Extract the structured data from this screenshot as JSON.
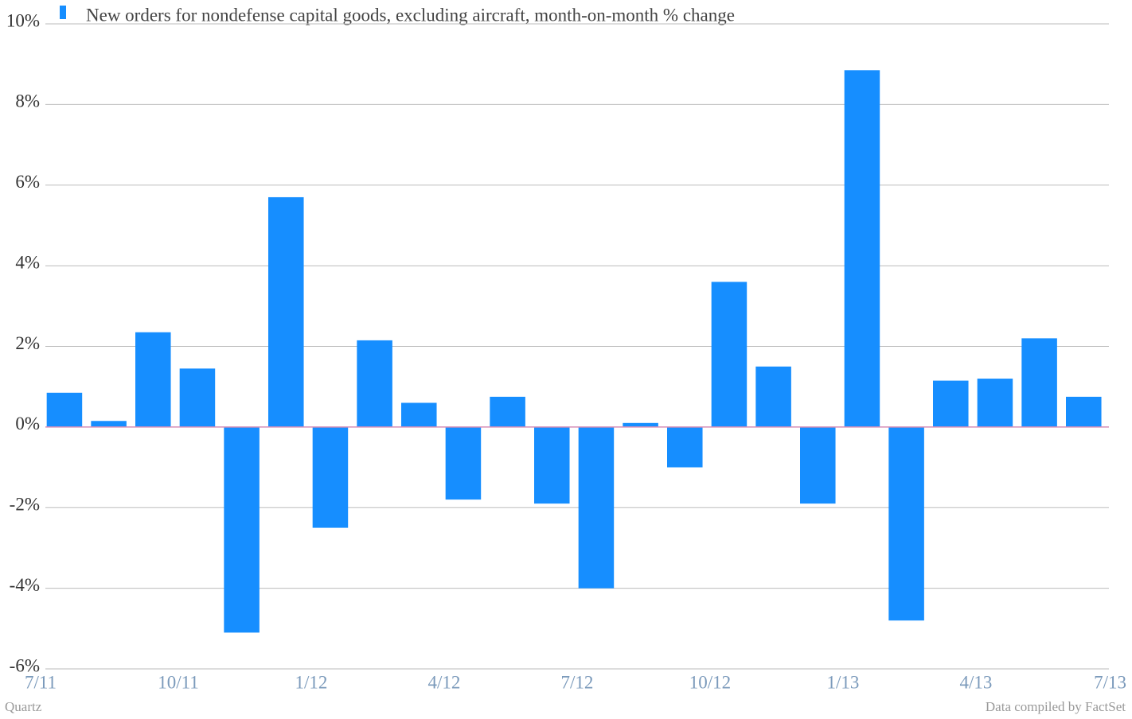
{
  "chart_data": {
    "type": "bar",
    "legend": "New orders for nondefense capital goods, excluding aircraft, month-on-month % change",
    "values": [
      0.85,
      0.15,
      2.35,
      1.45,
      -5.1,
      5.7,
      -2.5,
      2.15,
      0.6,
      -1.8,
      0.75,
      -1.9,
      -4.0,
      0.1,
      -1.0,
      3.6,
      1.5,
      -1.9,
      8.85,
      -4.8,
      1.15,
      1.2,
      2.2,
      0.75
    ],
    "color": "#168eff",
    "xlim": [
      0,
      24
    ],
    "xticks": [
      {
        "value": 0,
        "label": "7/11"
      },
      {
        "value": 3,
        "label": "10/11"
      },
      {
        "value": 6,
        "label": "1/12"
      },
      {
        "value": 9,
        "label": "4/12"
      },
      {
        "value": 12,
        "label": "7/12"
      },
      {
        "value": 15,
        "label": "10/12"
      },
      {
        "value": 18,
        "label": "1/13"
      },
      {
        "value": 21,
        "label": "4/13"
      },
      {
        "value": 24,
        "label": "7/13"
      }
    ],
    "ylim": [
      -6,
      10
    ],
    "yticks": [
      {
        "value": -6,
        "label": "-6%"
      },
      {
        "value": -4,
        "label": "-4%"
      },
      {
        "value": -2,
        "label": "-2%"
      },
      {
        "value": 0,
        "label": "0%"
      },
      {
        "value": 2,
        "label": "2%"
      },
      {
        "value": 4,
        "label": "4%"
      },
      {
        "value": 6,
        "label": "6%"
      },
      {
        "value": 8,
        "label": "8%"
      },
      {
        "value": 10,
        "label": "10%"
      }
    ],
    "grid": true,
    "source_left": "Quartz",
    "source_right": "Data compiled by FactSet"
  }
}
